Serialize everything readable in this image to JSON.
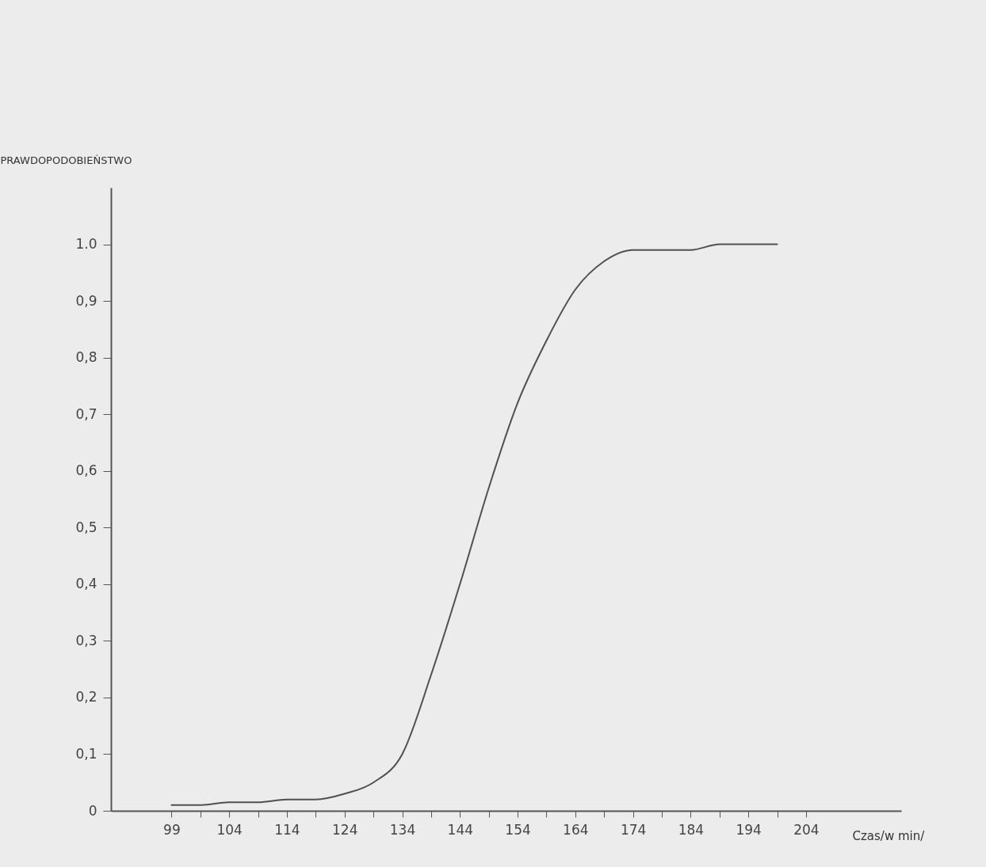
{
  "chart_data": {
    "type": "line",
    "xlabel": "Czas/w min/",
    "ylabel": "PRAWDOPODOBIEŃSTWO",
    "categories": [
      "99",
      null,
      "104",
      null,
      "114",
      null,
      "124",
      null,
      "134",
      null,
      "144",
      null,
      "154",
      null,
      "164",
      null,
      "174",
      null,
      "184",
      null,
      "194",
      null,
      "204"
    ],
    "series": [
      {
        "color": "#505050",
        "values": [
          0.01,
          0.01,
          0.015,
          0.015,
          0.02,
          0.02,
          0.03,
          0.05,
          0.1,
          0.24,
          0.4,
          0.57,
          0.72,
          0.83,
          0.92,
          0.97,
          0.99,
          0.99,
          0.99,
          1.0,
          1.0,
          1.0,
          null
        ]
      }
    ],
    "ylim": [
      0,
      1.1
    ],
    "yticks": [
      0,
      {
        "value": 0.1,
        "label": "0,1"
      },
      {
        "value": 0.2,
        "label": "0,2"
      },
      {
        "value": 0.3,
        "label": "0,3"
      },
      {
        "value": 0.4,
        "label": "0,4"
      },
      {
        "value": 0.5,
        "label": "0,5"
      },
      {
        "value": 0.6,
        "label": "0,6"
      },
      {
        "value": 0.7,
        "label": "0,7"
      },
      {
        "value": 0.8,
        "label": "0,8"
      },
      {
        "value": 0.9,
        "label": "0,9"
      },
      {
        "value": 1,
        "label": "1.0"
      }
    ],
    "grid": false,
    "marker": "none",
    "line_style": "solid"
  }
}
